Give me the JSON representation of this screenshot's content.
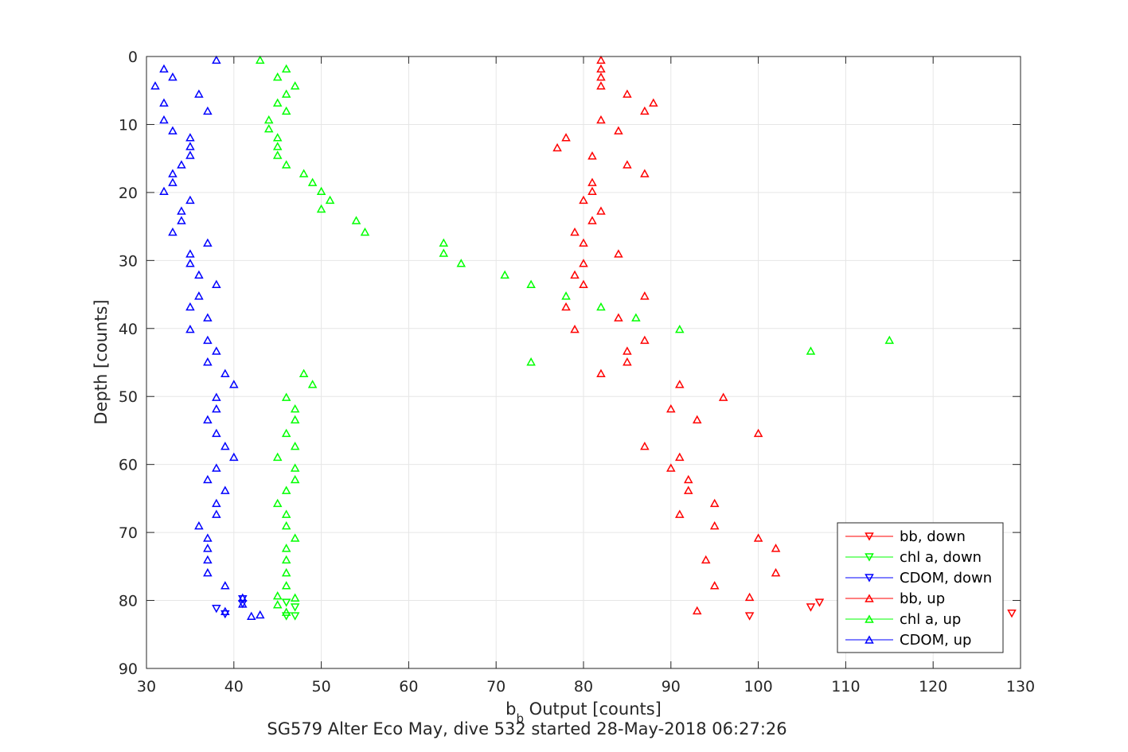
{
  "chart_data": {
    "type": "scatter",
    "title": "",
    "xlabel_main": "b",
    "xlabel_sub": "b",
    "xlabel_rest": " Output [counts]",
    "ylabel": "Depth [counts]",
    "caption": "SG579 Alter Eco May, dive 532 started 28-May-2018 06:27:26",
    "xlim": [
      30,
      130
    ],
    "ylim": [
      0,
      90
    ],
    "y_reversed": true,
    "grid": true,
    "x_ticks": [
      "30",
      "40",
      "50",
      "60",
      "70",
      "80",
      "90",
      "100",
      "110",
      "120",
      "130"
    ],
    "y_ticks": [
      "0",
      "10",
      "20",
      "30",
      "40",
      "50",
      "60",
      "70",
      "80",
      "90"
    ],
    "legend_position": "bottom-right",
    "legend": [
      "bb, down",
      "chl a, down",
      "CDOM, down",
      "bb, up",
      "chl a, up",
      "CDOM, up"
    ],
    "series": [
      {
        "name": "bb, down",
        "color": "#ff0000",
        "marker": "triangle-down",
        "points": [
          [
            107,
            80.3
          ],
          [
            106,
            81
          ],
          [
            99,
            82.3
          ],
          [
            129,
            81.9
          ]
        ]
      },
      {
        "name": "chl a, down",
        "color": "#00ff00",
        "marker": "triangle-down",
        "points": [
          [
            46,
            80.3
          ],
          [
            47,
            81
          ],
          [
            46,
            82.3
          ],
          [
            47,
            82.3
          ]
        ]
      },
      {
        "name": "CDOM, down",
        "color": "#0000ff",
        "marker": "triangle-down",
        "points": [
          [
            41,
            79.8
          ],
          [
            41,
            80.5
          ],
          [
            38,
            81.2
          ],
          [
            39,
            82
          ]
        ]
      },
      {
        "name": "bb, up",
        "color": "#ff0000",
        "marker": "triangle-up",
        "points": [
          [
            82,
            0.5
          ],
          [
            82,
            1.8
          ],
          [
            82,
            3
          ],
          [
            82,
            4.3
          ],
          [
            85,
            5.5
          ],
          [
            88,
            6.8
          ],
          [
            87,
            8
          ],
          [
            82,
            9.3
          ],
          [
            84,
            10.9
          ],
          [
            78,
            11.9
          ],
          [
            77,
            13.4
          ],
          [
            81,
            14.6
          ],
          [
            85,
            15.9
          ],
          [
            87,
            17.2
          ],
          [
            81,
            18.5
          ],
          [
            81,
            19.8
          ],
          [
            80,
            21.1
          ],
          [
            82,
            22.7
          ],
          [
            81,
            24.1
          ],
          [
            79,
            25.8
          ],
          [
            80,
            27.4
          ],
          [
            84,
            29
          ],
          [
            80,
            30.4
          ],
          [
            79,
            32.1
          ],
          [
            80,
            33.5
          ],
          [
            87,
            35.2
          ],
          [
            78,
            36.8
          ],
          [
            84,
            38.4
          ],
          [
            79,
            40.1
          ],
          [
            87,
            41.7
          ],
          [
            85,
            43.3
          ],
          [
            85,
            44.9
          ],
          [
            82,
            46.6
          ],
          [
            91,
            48.2
          ],
          [
            96,
            50.1
          ],
          [
            90,
            51.8
          ],
          [
            93,
            53.4
          ],
          [
            100,
            55.4
          ],
          [
            87,
            57.3
          ],
          [
            91,
            58.9
          ],
          [
            90,
            60.5
          ],
          [
            92,
            62.2
          ],
          [
            92,
            63.8
          ],
          [
            95,
            65.7
          ],
          [
            91,
            67.3
          ],
          [
            95,
            69
          ],
          [
            100,
            70.8
          ],
          [
            102,
            72.3
          ],
          [
            94,
            74
          ],
          [
            102,
            75.9
          ],
          [
            95,
            77.8
          ],
          [
            99,
            79.5
          ],
          [
            93,
            81.5
          ]
        ]
      },
      {
        "name": "chl a, up",
        "color": "#00ff00",
        "marker": "triangle-up",
        "points": [
          [
            43,
            0.5
          ],
          [
            46,
            1.8
          ],
          [
            45,
            3
          ],
          [
            47,
            4.3
          ],
          [
            46,
            5.5
          ],
          [
            45,
            6.8
          ],
          [
            46,
            8
          ],
          [
            44,
            9.3
          ],
          [
            44,
            10.6
          ],
          [
            45,
            11.9
          ],
          [
            45,
            13.2
          ],
          [
            45,
            14.5
          ],
          [
            46,
            15.9
          ],
          [
            48,
            17.2
          ],
          [
            49,
            18.5
          ],
          [
            50,
            19.8
          ],
          [
            51,
            21.1
          ],
          [
            50,
            22.4
          ],
          [
            54,
            24.1
          ],
          [
            55,
            25.8
          ],
          [
            64,
            27.4
          ],
          [
            64,
            28.9
          ],
          [
            66,
            30.4
          ],
          [
            71,
            32.1
          ],
          [
            74,
            33.5
          ],
          [
            78,
            35.2
          ],
          [
            82,
            36.8
          ],
          [
            86,
            38.4
          ],
          [
            91,
            40.1
          ],
          [
            115,
            41.7
          ],
          [
            106,
            43.3
          ],
          [
            74,
            44.9
          ],
          [
            48,
            46.6
          ],
          [
            49,
            48.2
          ],
          [
            46,
            50.1
          ],
          [
            47,
            51.8
          ],
          [
            47,
            53.4
          ],
          [
            46,
            55.4
          ],
          [
            47,
            57.3
          ],
          [
            45,
            58.9
          ],
          [
            47,
            60.5
          ],
          [
            47,
            62.2
          ],
          [
            46,
            63.8
          ],
          [
            45,
            65.7
          ],
          [
            46,
            67.3
          ],
          [
            46,
            69
          ],
          [
            47,
            70.8
          ],
          [
            46,
            72.3
          ],
          [
            46,
            74
          ],
          [
            46,
            75.9
          ],
          [
            46,
            77.8
          ],
          [
            45,
            79.3
          ],
          [
            45,
            80.6
          ],
          [
            47,
            79.6
          ],
          [
            46,
            81.7
          ]
        ]
      },
      {
        "name": "CDOM, up",
        "color": "#0000ff",
        "marker": "triangle-up",
        "points": [
          [
            38,
            0.5
          ],
          [
            32,
            1.8
          ],
          [
            33,
            3
          ],
          [
            31,
            4.3
          ],
          [
            36,
            5.5
          ],
          [
            32,
            6.8
          ],
          [
            37,
            8
          ],
          [
            32,
            9.3
          ],
          [
            33,
            10.9
          ],
          [
            35,
            11.9
          ],
          [
            35,
            13.2
          ],
          [
            35,
            14.5
          ],
          [
            34,
            15.9
          ],
          [
            33,
            17.2
          ],
          [
            33,
            18.5
          ],
          [
            32,
            19.8
          ],
          [
            35,
            21.1
          ],
          [
            34,
            22.7
          ],
          [
            34,
            24.1
          ],
          [
            33,
            25.8
          ],
          [
            37,
            27.4
          ],
          [
            35,
            29
          ],
          [
            35,
            30.4
          ],
          [
            36,
            32.1
          ],
          [
            38,
            33.5
          ],
          [
            36,
            35.2
          ],
          [
            35,
            36.8
          ],
          [
            37,
            38.4
          ],
          [
            35,
            40.1
          ],
          [
            37,
            41.7
          ],
          [
            38,
            43.3
          ],
          [
            37,
            44.9
          ],
          [
            39,
            46.6
          ],
          [
            40,
            48.2
          ],
          [
            38,
            50.1
          ],
          [
            38,
            51.8
          ],
          [
            37,
            53.4
          ],
          [
            38,
            55.4
          ],
          [
            39,
            57.3
          ],
          [
            40,
            58.9
          ],
          [
            38,
            60.5
          ],
          [
            37,
            62.2
          ],
          [
            39,
            63.8
          ],
          [
            38,
            65.7
          ],
          [
            38,
            67.3
          ],
          [
            36,
            69
          ],
          [
            37,
            70.8
          ],
          [
            37,
            72.3
          ],
          [
            37,
            74
          ],
          [
            37,
            75.9
          ],
          [
            39,
            77.8
          ],
          [
            41,
            79.6
          ],
          [
            41,
            80.5
          ],
          [
            39,
            81.6
          ],
          [
            42,
            82.3
          ],
          [
            43,
            82.1
          ]
        ]
      }
    ]
  }
}
